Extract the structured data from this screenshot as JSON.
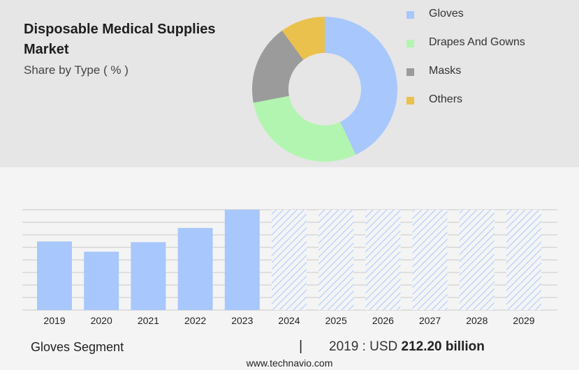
{
  "header": {
    "title": "Disposable Medical Supplies Market",
    "subtitle": "Share by Type ( % )"
  },
  "chart_data": [
    {
      "type": "pie",
      "variant": "donut",
      "labels": [
        "Gloves",
        "Drapes And Gowns",
        "Masks",
        "Others"
      ],
      "values": [
        43,
        29,
        18,
        10
      ],
      "colors": [
        "#a7c7fd",
        "#b2f5b0",
        "#9b9b9b",
        "#ebc14d"
      ],
      "legend_placement": "right"
    },
    {
      "type": "bar",
      "categories": [
        "2019",
        "2020",
        "2021",
        "2022",
        "2023",
        "2024",
        "2025",
        "2026",
        "2027",
        "2028",
        "2029"
      ],
      "values": [
        212.2,
        180.6,
        210.1,
        254.0,
        310.3,
        null,
        null,
        null,
        null,
        null,
        null
      ],
      "forecast_categories": [
        "2024",
        "2025",
        "2026",
        "2027",
        "2028",
        "2029"
      ],
      "bar_color": "#a7c7fd",
      "forecast_pattern": "diagonal-hatch",
      "ylim": [
        0,
        310.3
      ],
      "grid": true
    }
  ],
  "footer": {
    "segment_label": "Gloves Segment",
    "divider": "|",
    "value_prefix": "2019 : USD",
    "value_bold": "212.20 billion",
    "website": "www.technavio.com"
  }
}
